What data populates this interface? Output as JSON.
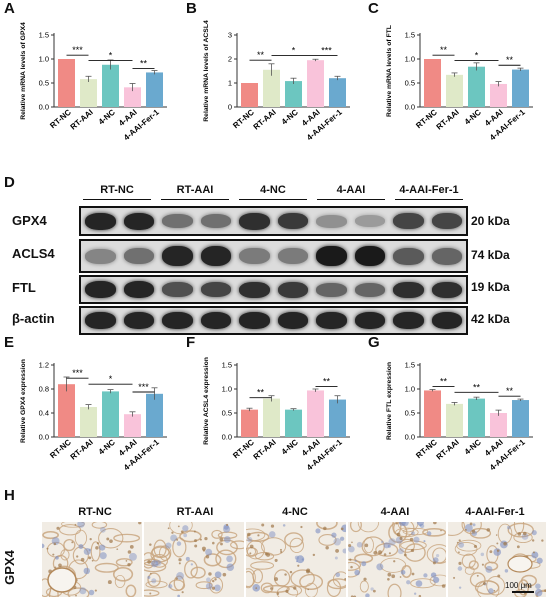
{
  "panel_letters": [
    "A",
    "B",
    "C",
    "D",
    "E",
    "F",
    "G",
    "H"
  ],
  "colors": {
    "RT-NC": "#f08a85",
    "RT-AAI": "#dfe9c8",
    "4-NC": "#6cc6c0",
    "4-AAI": "#f9c3da",
    "4-AAI-Fer-1": "#6aa9cf"
  },
  "chart_data": [
    {
      "id": "A",
      "type": "bar",
      "categories": [
        "RT-NC",
        "RT-AAI",
        "4-NC",
        "4-AAI",
        "4-AAI-Fer-1"
      ],
      "values": [
        1.0,
        0.58,
        0.88,
        0.41,
        0.72
      ],
      "errors": [
        0.0,
        0.06,
        0.1,
        0.08,
        0.04
      ],
      "ylabel": "Relative mRNA levels of GPX4",
      "ylim": [
        0,
        1.5
      ],
      "yticks": [
        "0.0",
        "0.5",
        "1.0",
        "1.5"
      ],
      "significance": [
        {
          "from": 0,
          "to": 1,
          "level": 1.08,
          "label": "***"
        },
        {
          "from": 1,
          "to": 3,
          "level": 0.97,
          "label": "*"
        },
        {
          "from": 3,
          "to": 4,
          "level": 0.8,
          "label": "**"
        }
      ]
    },
    {
      "id": "B",
      "type": "bar",
      "categories": [
        "RT-NC",
        "RT-AAI",
        "4-NC",
        "4-AAI",
        "4-AAI-Fer-1"
      ],
      "values": [
        1.0,
        1.55,
        1.08,
        1.95,
        1.2
      ],
      "errors": [
        0.0,
        0.25,
        0.12,
        0.04,
        0.08
      ],
      "ylabel": "Relative mRNA levels of ACSL4",
      "ylim": [
        0,
        3
      ],
      "yticks": [
        "0",
        "1",
        "2",
        "3"
      ],
      "significance": [
        {
          "from": 0,
          "to": 1,
          "level": 1.95,
          "label": "**"
        },
        {
          "from": 1,
          "to": 3,
          "level": 2.15,
          "label": "*"
        },
        {
          "from": 3,
          "to": 4,
          "level": 2.15,
          "label": "***"
        }
      ]
    },
    {
      "id": "C",
      "type": "bar",
      "categories": [
        "RT-NC",
        "RT-AAI",
        "4-NC",
        "4-AAI",
        "4-AAI-Fer-1"
      ],
      "values": [
        1.0,
        0.67,
        0.84,
        0.48,
        0.78
      ],
      "errors": [
        0.0,
        0.04,
        0.08,
        0.05,
        0.03
      ],
      "ylabel": "Relative mRNA levels of FTL",
      "ylim": [
        0,
        1.5
      ],
      "yticks": [
        "0.0",
        "0.5",
        "1.0",
        "1.5"
      ],
      "significance": [
        {
          "from": 0,
          "to": 1,
          "level": 1.08,
          "label": "**"
        },
        {
          "from": 1,
          "to": 3,
          "level": 0.97,
          "label": "*"
        },
        {
          "from": 3,
          "to": 4,
          "level": 0.87,
          "label": "**"
        }
      ]
    },
    {
      "id": "E",
      "type": "bar",
      "categories": [
        "RT-NC",
        "RT-AAI",
        "4-NC",
        "4-AAI",
        "4-AAI-Fer-1"
      ],
      "values": [
        0.88,
        0.5,
        0.76,
        0.38,
        0.72
      ],
      "errors": [
        0.12,
        0.04,
        0.03,
        0.04,
        0.1
      ],
      "ylabel": "Relative GPX4 expression",
      "ylim": [
        0,
        1.2
      ],
      "yticks": [
        "0.0",
        "0.4",
        "0.8",
        "1.2"
      ],
      "significance": [
        {
          "from": 0,
          "to": 1,
          "level": 0.98,
          "label": "***"
        },
        {
          "from": 1,
          "to": 3,
          "level": 0.88,
          "label": "*"
        },
        {
          "from": 3,
          "to": 4,
          "level": 0.75,
          "label": "***"
        }
      ]
    },
    {
      "id": "F",
      "type": "bar",
      "categories": [
        "RT-NC",
        "RT-AAI",
        "4-NC",
        "4-AAI",
        "4-AAI-Fer-1"
      ],
      "values": [
        0.57,
        0.8,
        0.57,
        0.97,
        0.78
      ],
      "errors": [
        0.03,
        0.06,
        0.02,
        0.03,
        0.08
      ],
      "ylabel": "Relative ACSL4 expression",
      "ylim": [
        0,
        1.5
      ],
      "yticks": [
        "0.0",
        "0.5",
        "1.0",
        "1.5"
      ],
      "significance": [
        {
          "from": 0,
          "to": 1,
          "level": 0.82,
          "label": "**"
        },
        {
          "from": 3,
          "to": 4,
          "level": 1.05,
          "label": "**"
        }
      ]
    },
    {
      "id": "G",
      "type": "bar",
      "categories": [
        "RT-NC",
        "RT-AAI",
        "4-NC",
        "4-AAI",
        "4-AAI-Fer-1"
      ],
      "values": [
        0.97,
        0.69,
        0.8,
        0.5,
        0.77
      ],
      "errors": [
        0.02,
        0.03,
        0.03,
        0.06,
        0.02
      ],
      "ylabel": "Relative FTL expression",
      "ylim": [
        0,
        1.5
      ],
      "yticks": [
        "0.0",
        "0.5",
        "1.0",
        "1.5"
      ],
      "significance": [
        {
          "from": 0,
          "to": 1,
          "level": 1.05,
          "label": "**"
        },
        {
          "from": 1,
          "to": 3,
          "level": 0.93,
          "label": "**"
        },
        {
          "from": 3,
          "to": 4,
          "level": 0.85,
          "label": "**"
        }
      ]
    }
  ],
  "western_blot": {
    "groups": [
      "RT-NC",
      "RT-AAI",
      "4-NC",
      "4-AAI",
      "4-AAI-Fer-1"
    ],
    "rows": [
      {
        "protein": "GPX4",
        "kda": "20 kDa",
        "intensity": [
          0.9,
          0.9,
          0.55,
          0.55,
          0.85,
          0.8,
          0.4,
          0.35,
          0.75,
          0.75
        ]
      },
      {
        "protein": "ACLS4",
        "kda": "74 kDa",
        "intensity": [
          0.45,
          0.55,
          0.9,
          0.9,
          0.5,
          0.5,
          0.95,
          0.95,
          0.65,
          0.6
        ]
      },
      {
        "protein": "FTL",
        "kda": "19 kDa",
        "intensity": [
          0.9,
          0.9,
          0.7,
          0.75,
          0.85,
          0.8,
          0.6,
          0.6,
          0.85,
          0.85
        ]
      },
      {
        "protein": "β-actin",
        "kda": "42 kDa",
        "intensity": [
          0.9,
          0.9,
          0.9,
          0.9,
          0.9,
          0.9,
          0.9,
          0.9,
          0.9,
          0.9
        ]
      }
    ]
  },
  "ihc": {
    "labels": [
      "RT-NC",
      "RT-AAI",
      "4-NC",
      "4-AAI",
      "4-AAI-Fer-1"
    ],
    "row_label": "GPX4",
    "scale_bar": "100 μm"
  }
}
